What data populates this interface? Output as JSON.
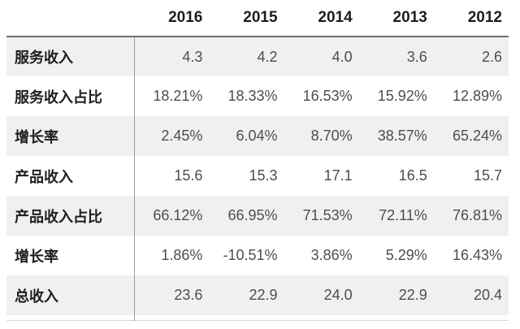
{
  "chart_data": {
    "type": "table",
    "title": "",
    "columns": [
      "2016",
      "2015",
      "2014",
      "2013",
      "2012"
    ],
    "rows": [
      {
        "label": "服务收入",
        "values": [
          "4.3",
          "4.2",
          "4.0",
          "3.6",
          "2.6"
        ]
      },
      {
        "label": "服务收入占比",
        "values": [
          "18.21%",
          "18.33%",
          "16.53%",
          "15.92%",
          "12.89%"
        ]
      },
      {
        "label": "增长率",
        "values": [
          "2.45%",
          "6.04%",
          "8.70%",
          "38.57%",
          "65.24%"
        ]
      },
      {
        "label": "产品收入",
        "values": [
          "15.6",
          "15.3",
          "17.1",
          "16.5",
          "15.7"
        ]
      },
      {
        "label": "产品收入占比",
        "values": [
          "66.12%",
          "66.95%",
          "71.53%",
          "72.11%",
          "76.81%"
        ]
      },
      {
        "label": "增长率",
        "values": [
          "1.86%",
          "-10.51%",
          "3.86%",
          "5.29%",
          "16.43%"
        ]
      },
      {
        "label": "总收入",
        "values": [
          "23.6",
          "22.9",
          "24.0",
          "22.9",
          "20.4"
        ]
      }
    ],
    "layout": {
      "stripe_rows": "odd rows shaded",
      "label_column_divider": true,
      "grid": "none"
    }
  },
  "colors": {
    "row_stripe": "#f0f0f0",
    "header_underline": "#6e6e6e",
    "column_divider": "#9c9c9c",
    "bottom_border": "#d6d6d6",
    "label_text": "#1d1d1d",
    "value_text": "#4d4d4d",
    "background": "#ffffff"
  }
}
